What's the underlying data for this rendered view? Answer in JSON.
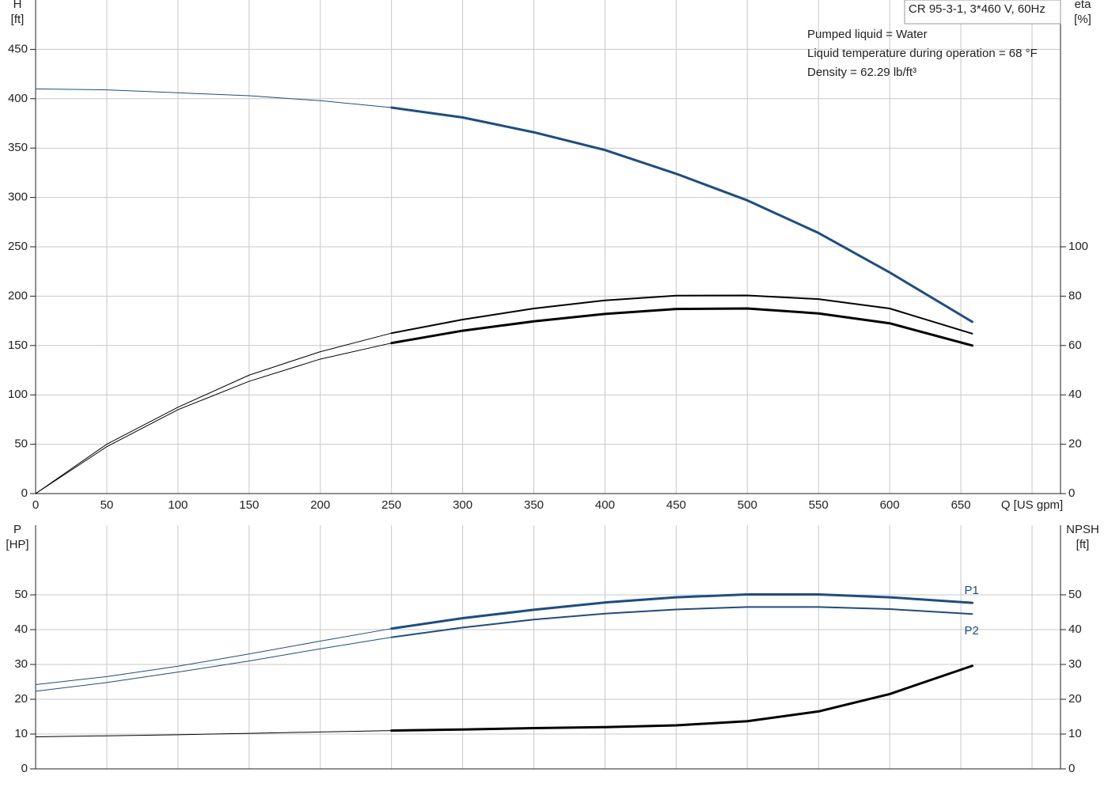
{
  "chart_data": [
    {
      "type": "line",
      "ylabel": [
        "H",
        "[ft]"
      ],
      "y2label": [
        "eta",
        "[%]"
      ],
      "annotations": [
        "CR 95-3-1, 3*460 V, 60Hz",
        "Pumped liquid = Water",
        "Liquid temperature during operation = 68 °F",
        "Density = 62.29 lb/ft³"
      ],
      "x": [
        0,
        50,
        100,
        150,
        200,
        250,
        300,
        350,
        400,
        450,
        500,
        550,
        600,
        658
      ],
      "xlim": [
        0,
        720
      ],
      "xticks": [
        0,
        50,
        100,
        150,
        200,
        250,
        300,
        350,
        400,
        450,
        500,
        550,
        600,
        650,
        {
          "value": 700,
          "label": "Q [US gpm]"
        }
      ],
      "ylim": [
        0,
        500
      ],
      "yticks": [
        0,
        50,
        100,
        150,
        200,
        250,
        300,
        350,
        400,
        450
      ],
      "y2lim": [
        0,
        200
      ],
      "y2ticks": [
        0,
        20,
        40,
        60,
        80,
        100
      ],
      "grid": true,
      "series": [
        {
          "color": "#1b4d89",
          "width": 1,
          "values": [
            410,
            409,
            406,
            403,
            398,
            391,
            null,
            null,
            null,
            null,
            null,
            null,
            null,
            null
          ]
        },
        {
          "color": "#1b4d89",
          "width": 3,
          "values": [
            null,
            null,
            null,
            null,
            null,
            391,
            381,
            366,
            348,
            324,
            297,
            264,
            224,
            174
          ]
        },
        {
          "color": "#000000",
          "width": 1,
          "axis": "y2",
          "values": [
            0,
            20,
            35,
            48,
            57.5,
            65,
            null,
            null,
            null,
            null,
            null,
            null,
            null,
            null
          ]
        },
        {
          "color": "#000000",
          "width": 2,
          "axis": "y2",
          "values": [
            null,
            null,
            null,
            null,
            null,
            65,
            70.5,
            75,
            78.3,
            80.2,
            80.3,
            78.8,
            75,
            64.8
          ]
        },
        {
          "color": "#000000",
          "width": 1,
          "axis": "y2",
          "values": [
            0,
            19,
            34,
            45.5,
            54.5,
            61,
            null,
            null,
            null,
            null,
            null,
            null,
            null,
            null
          ]
        },
        {
          "color": "#000000",
          "width": 3,
          "axis": "y2",
          "values": [
            null,
            null,
            null,
            null,
            null,
            61,
            66,
            69.8,
            72.8,
            74.8,
            75,
            73,
            69,
            60
          ]
        }
      ]
    },
    {
      "type": "line",
      "ylabel": [
        "P",
        "[HP]"
      ],
      "y2label": [
        "NPSH",
        "[ft]"
      ],
      "x": [
        0,
        50,
        100,
        150,
        200,
        250,
        300,
        350,
        400,
        450,
        500,
        550,
        600,
        658
      ],
      "xlim": [
        0,
        720
      ],
      "ylim": [
        0,
        70
      ],
      "yticks": [
        0,
        10,
        20,
        30,
        40,
        50
      ],
      "y2lim": [
        0,
        70
      ],
      "y2ticks": [
        0,
        10,
        20,
        30,
        40,
        50
      ],
      "grid": true,
      "series": [
        {
          "color": "#1b4d89",
          "width": 1,
          "values": [
            24.2,
            26.5,
            29.5,
            33,
            36.7,
            40.3,
            null,
            null,
            null,
            null,
            null,
            null,
            null,
            null
          ]
        },
        {
          "name": "P1",
          "label_side": "above",
          "color": "#1b4d89",
          "width": 3,
          "values": [
            null,
            null,
            null,
            null,
            null,
            40.3,
            43.3,
            45.7,
            47.8,
            49.3,
            50.1,
            50.1,
            49.3,
            47.7
          ]
        },
        {
          "color": "#1b4d89",
          "width": 1,
          "values": [
            22.3,
            24.8,
            27.8,
            31,
            34.5,
            37.8,
            null,
            null,
            null,
            null,
            null,
            null,
            null,
            null
          ]
        },
        {
          "name": "P2",
          "label_side": "below",
          "color": "#1b4d89",
          "width": 2,
          "values": [
            null,
            null,
            null,
            null,
            null,
            37.8,
            40.6,
            42.9,
            44.6,
            45.8,
            46.5,
            46.5,
            45.9,
            44.5
          ]
        },
        {
          "color": "#000000",
          "width": 1,
          "axis": "y2",
          "values": [
            9.2,
            9.5,
            9.8,
            10.2,
            10.6,
            11,
            null,
            null,
            null,
            null,
            null,
            null,
            null,
            null
          ]
        },
        {
          "color": "#000000",
          "width": 3,
          "axis": "y2",
          "values": [
            null,
            null,
            null,
            null,
            null,
            11,
            11.3,
            11.7,
            12,
            12.5,
            13.7,
            16.5,
            21.5,
            29.6
          ]
        }
      ]
    }
  ]
}
